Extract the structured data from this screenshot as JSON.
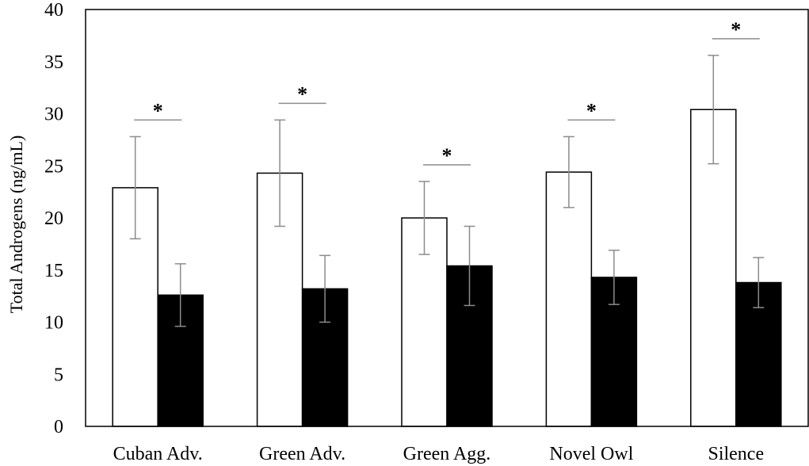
{
  "chart_data": {
    "type": "bar",
    "title": "",
    "xlabel": "",
    "ylabel": "Total Androgens (ng/mL)",
    "ylim": [
      0,
      40
    ],
    "yticks": [
      0,
      5,
      10,
      15,
      20,
      25,
      30,
      35,
      40
    ],
    "grid": false,
    "categories": [
      "Cuban Adv.",
      "Green Adv.",
      "Green Agg.",
      "Novel Owl",
      "Silence"
    ],
    "series": [
      {
        "values": [
          22.9,
          24.3,
          20.0,
          24.4,
          30.4
        ],
        "errors": [
          4.9,
          5.1,
          3.5,
          3.4,
          5.2
        ],
        "fill": "#ffffff",
        "stroke": "#000000"
      },
      {
        "values": [
          12.6,
          13.2,
          15.4,
          14.3,
          13.8
        ],
        "errors": [
          3.0,
          3.2,
          3.8,
          2.6,
          2.4
        ],
        "fill": "#000000",
        "stroke": "#000000"
      }
    ],
    "annotations": [
      "*",
      "*",
      "*",
      "*",
      "*"
    ],
    "errorbar_color": "#8c8c8c"
  }
}
